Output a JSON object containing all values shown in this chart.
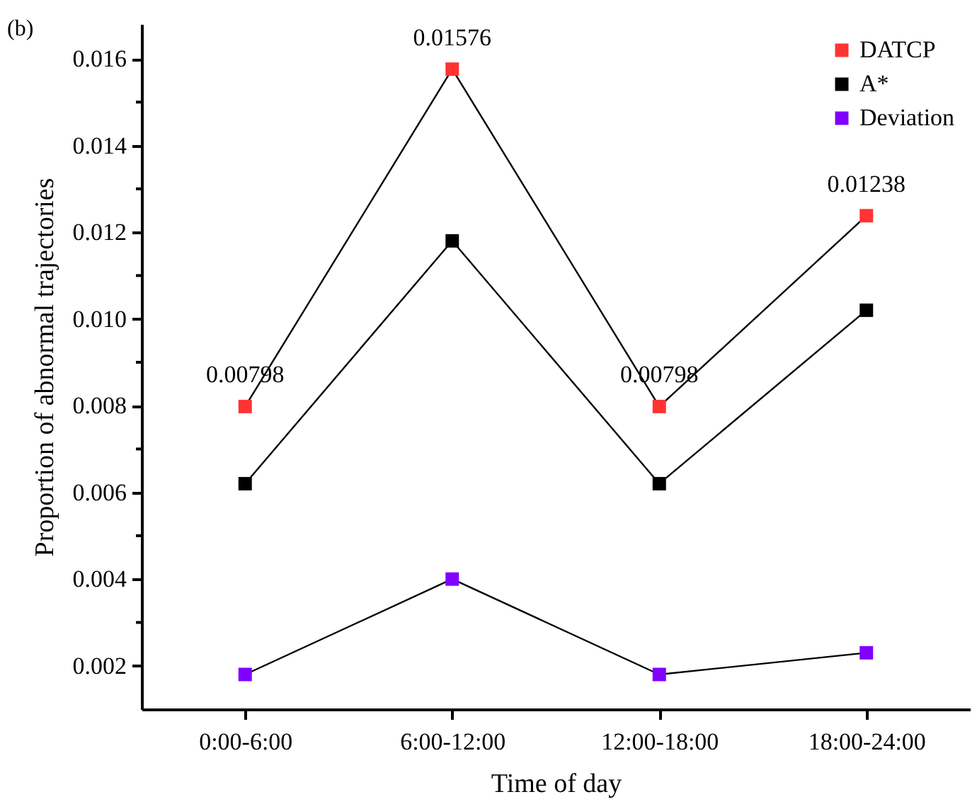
{
  "chart_data": {
    "type": "line",
    "xlabel": "Time of day",
    "ylabel": "Proportion of abnormal trajectories",
    "categories": [
      "0:00-6:00",
      "6:00-12:00",
      "12:00-18:00",
      "18:00-24:00"
    ],
    "series": [
      {
        "name": "DATCP",
        "color": "#ff3333",
        "values": [
          0.00798,
          0.01576,
          0.00798,
          0.01238
        ],
        "value_labels": [
          "0.00798",
          "0.01576",
          "0.00798",
          "0.01238"
        ]
      },
      {
        "name": "A*",
        "color": "#000000",
        "values": [
          0.0062,
          0.0118,
          0.0062,
          0.0102
        ]
      },
      {
        "name": "Deviation",
        "color": "#8000ff",
        "values": [
          0.0018,
          0.004,
          0.0018,
          0.0023
        ]
      }
    ],
    "ylim": [
      0.001,
      0.0168
    ],
    "yticks": [
      0.002,
      {
        "value": 0.003,
        "label": null
      },
      0.004,
      {
        "value": 0.005,
        "label": null
      },
      0.006,
      {
        "value": 0.007,
        "label": null
      },
      0.008,
      {
        "value": 0.009,
        "label": null
      },
      {
        "value": 0.01,
        "label": "0.010"
      },
      {
        "value": 0.011,
        "label": null
      },
      0.012,
      {
        "value": 0.013,
        "label": null
      },
      0.014,
      {
        "value": 0.015,
        "label": null
      },
      0.016
    ],
    "marker": "square",
    "line_style": "solid",
    "grid": false,
    "legend": "top right",
    "annotations": [
      "(b)"
    ]
  }
}
